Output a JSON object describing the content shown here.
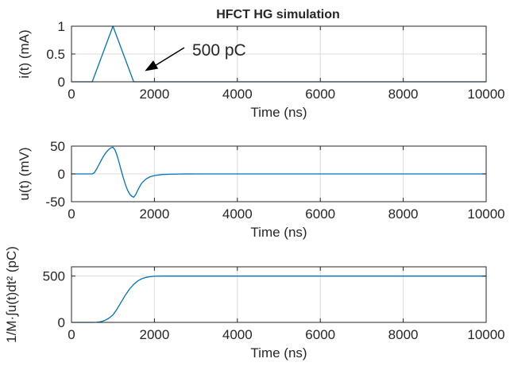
{
  "title": "HFCT HG simulation",
  "colors": {
    "series": "#0072BD",
    "axis": "#262626",
    "grid": "#dcdcdc",
    "background": "#ffffff"
  },
  "chart_data": [
    {
      "type": "line",
      "title": "HFCT HG simulation",
      "xlabel": "Time (ns)",
      "ylabel": "i(t) (mA)",
      "xlim": [
        0,
        10000
      ],
      "ylim": [
        0,
        1
      ],
      "xticks": [
        0,
        2000,
        4000,
        6000,
        8000,
        10000
      ],
      "yticks": [
        0,
        0.5,
        1
      ],
      "xtick_labels": [
        "0",
        "2000",
        "4000",
        "6000",
        "8000",
        "10000"
      ],
      "ytick_labels": [
        "0",
        "0.5",
        "1"
      ],
      "grid": true,
      "annotation": {
        "text": "500 pC",
        "arrow_to": {
          "x": 1500,
          "y": 0.25
        }
      },
      "series": [
        {
          "x": [
            0,
            500,
            1000,
            1500,
            10000
          ],
          "y": [
            0,
            0,
            1,
            0,
            0
          ]
        }
      ]
    },
    {
      "type": "line",
      "xlabel": "Time (ns)",
      "ylabel": "u(t) (mV)",
      "xlim": [
        0,
        10000
      ],
      "ylim": [
        -50,
        50
      ],
      "xticks": [
        0,
        2000,
        4000,
        6000,
        8000,
        10000
      ],
      "yticks": [
        -50,
        0,
        50
      ],
      "xtick_labels": [
        "0",
        "2000",
        "4000",
        "6000",
        "8000",
        "10000"
      ],
      "ytick_labels": [
        "-50",
        "0",
        "50"
      ],
      "grid": true,
      "series": [
        {
          "x": [
            0,
            500,
            550,
            600,
            650,
            700,
            750,
            800,
            850,
            900,
            950,
            1000,
            1050,
            1100,
            1150,
            1200,
            1250,
            1300,
            1350,
            1400,
            1450,
            1500,
            1550,
            1600,
            1650,
            1700,
            1800,
            1900,
            2000,
            2100,
            2200,
            2400,
            2600,
            2800,
            3000,
            10000
          ],
          "y": [
            0,
            0,
            2,
            8,
            15,
            22,
            29,
            35,
            40,
            44,
            47,
            48,
            43,
            33,
            20,
            6,
            -7,
            -19,
            -29,
            -36,
            -40,
            -42,
            -37,
            -29,
            -22,
            -16,
            -9,
            -5,
            -3,
            -2,
            -1,
            -0.5,
            -0.2,
            -0.1,
            0,
            0
          ]
        }
      ]
    },
    {
      "type": "line",
      "xlabel": "Time (ns)",
      "ylabel": "1/M·∫u(t)dt² (pC)",
      "xlim": [
        0,
        10000
      ],
      "ylim": [
        0,
        600
      ],
      "xticks": [
        0,
        2000,
        4000,
        6000,
        8000,
        10000
      ],
      "yticks": [
        0,
        500
      ],
      "xtick_labels": [
        "0",
        "2000",
        "4000",
        "6000",
        "8000",
        "10000"
      ],
      "ytick_labels": [
        "0",
        "500"
      ],
      "grid": true,
      "series": [
        {
          "x": [
            0,
            500,
            600,
            700,
            800,
            900,
            1000,
            1100,
            1200,
            1300,
            1400,
            1500,
            1600,
            1700,
            1800,
            1900,
            2000,
            2200,
            10000
          ],
          "y": [
            0,
            0,
            1,
            6,
            20,
            45,
            80,
            145,
            220,
            295,
            360,
            410,
            448,
            472,
            486,
            494,
            498,
            500,
            500
          ]
        }
      ]
    }
  ]
}
